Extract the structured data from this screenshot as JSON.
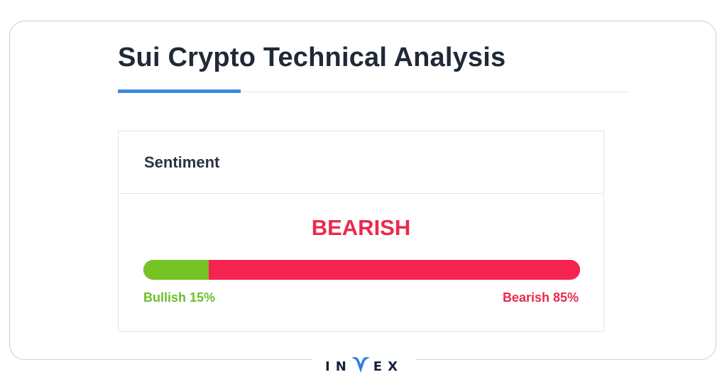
{
  "header": {
    "title": "Sui Crypto Technical Analysis"
  },
  "sentiment_card": {
    "title": "Sentiment",
    "verdict": "BEARISH",
    "bullish_label": "Bullish 15%",
    "bearish_label": "Bearish 85%",
    "bullish_percent": 15,
    "bearish_percent": 85
  },
  "brand": {
    "left": "IN",
    "middle": "V",
    "right": "EX"
  },
  "colors": {
    "accent": "#3f8ae0",
    "bullish": "#76c424",
    "bearish": "#f4234f",
    "frame": "#b7d4ef",
    "title_text": "#1f2a37"
  },
  "icons": {
    "brand_logo": "invex-logo-icon"
  }
}
